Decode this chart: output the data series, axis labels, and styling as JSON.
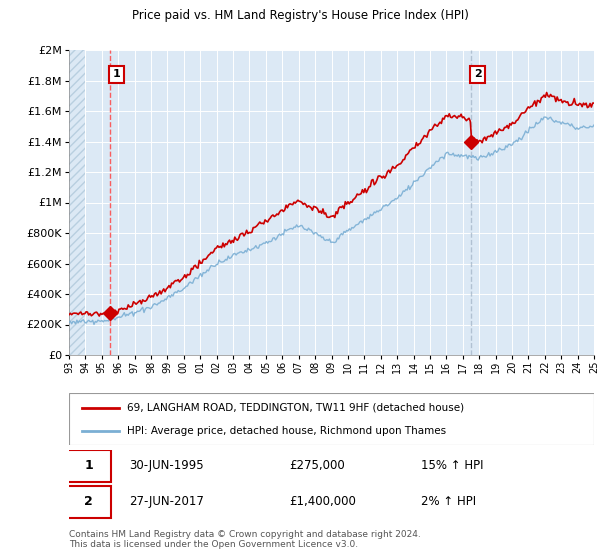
{
  "title": "69, LANGHAM ROAD, TEDDINGTON, TW11 9HF",
  "subtitle": "Price paid vs. HM Land Registry's House Price Index (HPI)",
  "legend_line1": "69, LANGHAM ROAD, TEDDINGTON, TW11 9HF (detached house)",
  "legend_line2": "HPI: Average price, detached house, Richmond upon Thames",
  "transaction1_date": "30-JUN-1995",
  "transaction1_price": "£275,000",
  "transaction1_hpi": "15% ↑ HPI",
  "transaction1_year": 1995.5,
  "transaction1_value": 275000,
  "transaction2_date": "27-JUN-2017",
  "transaction2_price": "£1,400,000",
  "transaction2_hpi": "2% ↑ HPI",
  "transaction2_year": 2017.5,
  "transaction2_value": 1400000,
  "footnote": "Contains HM Land Registry data © Crown copyright and database right 2024.\nThis data is licensed under the Open Government Licence v3.0.",
  "background_color": "#ffffff",
  "plot_bg_color": "#dce9f5",
  "hatch_bg_color": "#dce9f5",
  "hatch_color": "#b8cfe0",
  "red_line_color": "#cc0000",
  "blue_line_color": "#7bafd4",
  "grid_color": "#ffffff",
  "tx1_vline_color": "#ff4444",
  "tx2_vline_color": "#aabbcc",
  "marker_color": "#cc0000",
  "ylim_min": 0,
  "ylim_max": 2000000,
  "xmin": 1993,
  "xmax": 2025,
  "xtick_step": 1,
  "hatch_xend": 1995.5
}
